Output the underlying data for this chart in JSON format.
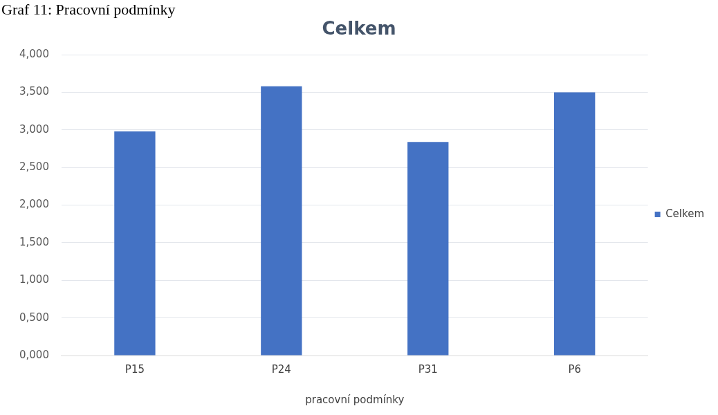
{
  "chart_data": {
    "type": "bar",
    "title": "Celkem",
    "xlabel": "pracovní podmínky",
    "annotations": [
      "Graf 11: Pracovní podmínky"
    ],
    "categories": [
      "P15",
      "P24",
      "P31",
      "P6"
    ],
    "series": [
      {
        "name": "Celkem",
        "color": "#4472c4",
        "values": [
          2.98,
          3.58,
          2.84,
          3.5
        ]
      }
    ],
    "ylim": [
      0,
      4
    ],
    "yticks": [
      {
        "value": 0,
        "label": "0,000"
      },
      {
        "value": 0.5,
        "label": "0,500"
      },
      {
        "value": 1,
        "label": "1,000"
      },
      {
        "value": 1.5,
        "label": "1,500"
      },
      {
        "value": 2,
        "label": "2,000"
      },
      {
        "value": 2.5,
        "label": "2,500"
      },
      {
        "value": 3,
        "label": "3,000"
      },
      {
        "value": 3.5,
        "label": "3,500"
      },
      {
        "value": 4,
        "label": "4,000"
      }
    ],
    "grid": "y",
    "legend": "right"
  }
}
